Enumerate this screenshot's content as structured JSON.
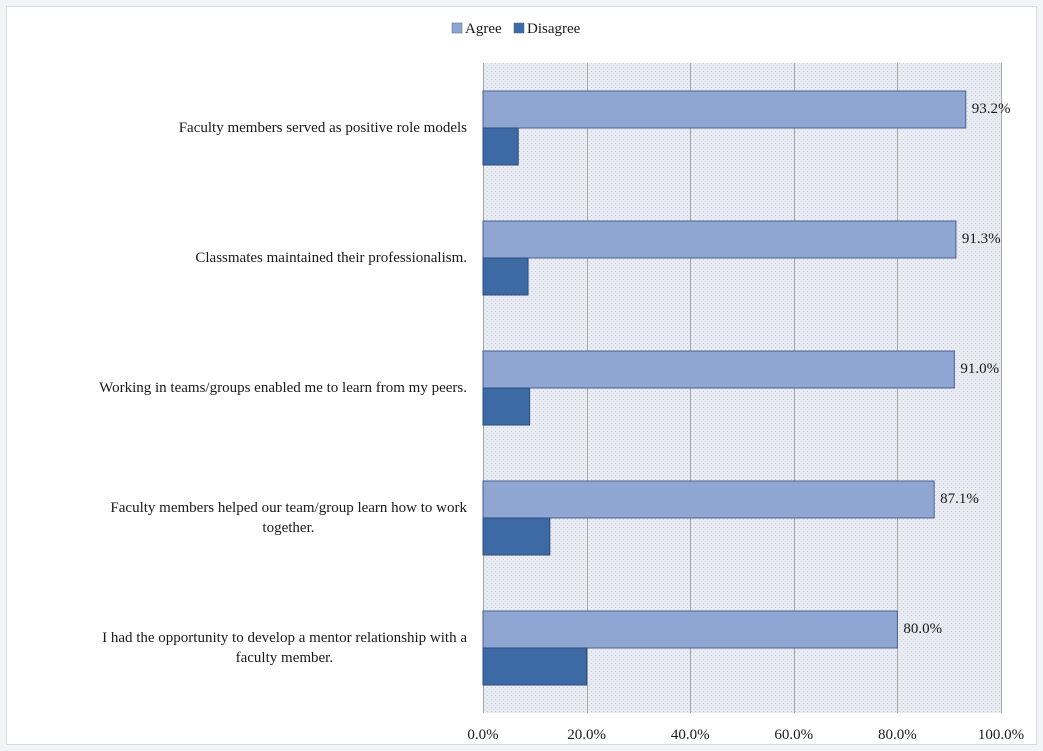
{
  "chart_data": {
    "type": "bar",
    "orientation": "horizontal",
    "categories": [
      "Faculty members served as positive role models",
      "Classmates maintained their professionalism.",
      "Working in teams/groups enabled me to learn from my peers.",
      "Faculty members helped our team/group learn how to work together.",
      "I had the opportunity to develop a mentor relationship with a faculty member."
    ],
    "category_lines": [
      [
        "Faculty members served as positive role models"
      ],
      [
        "Classmates maintained their professionalism."
      ],
      [
        "Working in teams/groups enabled me to learn from my peers."
      ],
      [
        "Faculty members helped our team/group learn how to work",
        "together."
      ],
      [
        "I had the opportunity to develop a mentor relationship with a",
        "faculty member."
      ]
    ],
    "series": [
      {
        "name": "Agree",
        "color": "#8fa6d3",
        "values": [
          93.2,
          91.3,
          91.0,
          87.1,
          80.0
        ],
        "labels": [
          "93.2%",
          "91.3%",
          "91.0%",
          "87.1%",
          "80.0%"
        ]
      },
      {
        "name": "Disagree",
        "color": "#3d6aa4",
        "values": [
          6.8,
          8.7,
          9.0,
          12.9,
          20.0
        ]
      }
    ],
    "xlim": [
      0,
      100
    ],
    "xticks": [
      0,
      20,
      40,
      60,
      80,
      100
    ],
    "xtick_labels": [
      "0.0%",
      "20.0%",
      "40.0%",
      "60.0%",
      "80.0%",
      "100.0%"
    ],
    "title": "",
    "xlabel": "",
    "ylabel": "",
    "grid": "vertical",
    "legend_position": "top",
    "plot_background": "#e6eaf3"
  }
}
